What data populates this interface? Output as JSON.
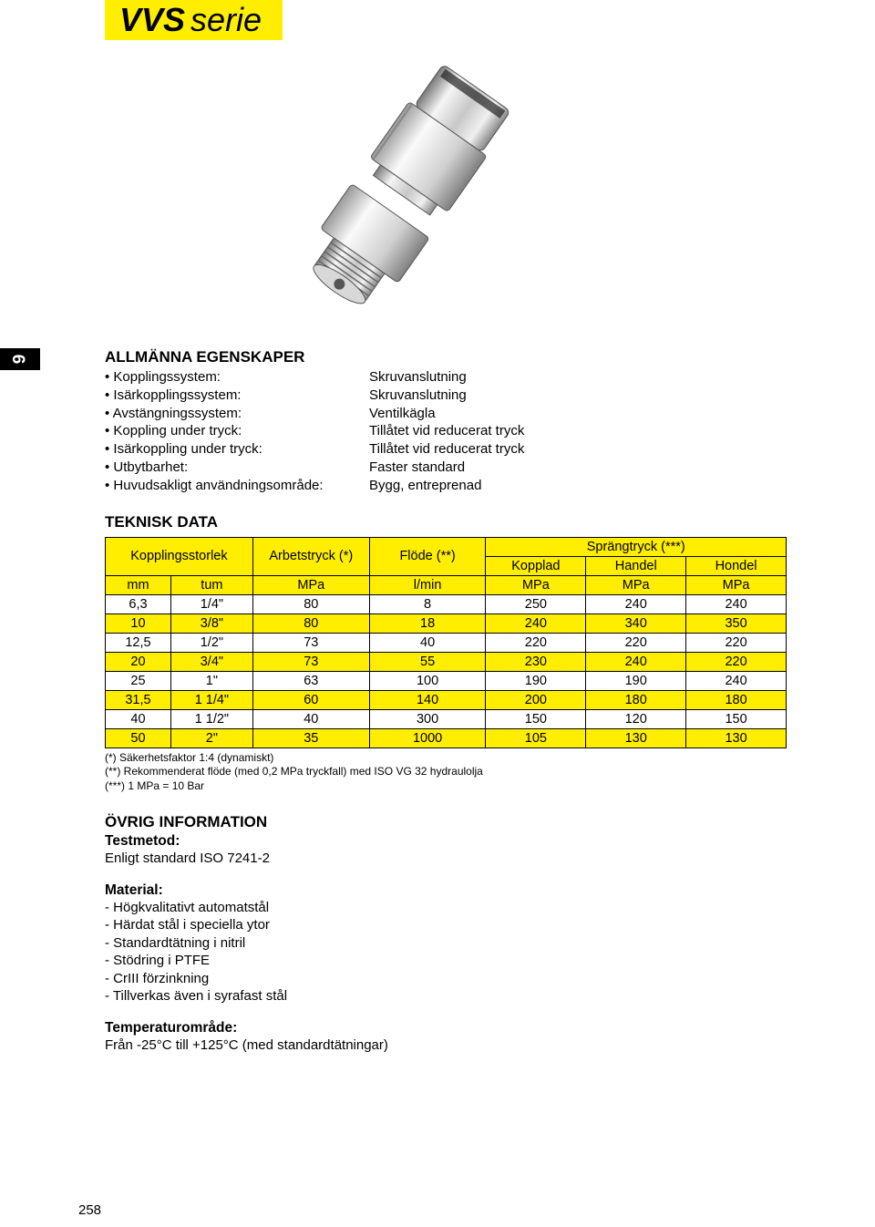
{
  "title": {
    "bold": "VVS",
    "light": "serie"
  },
  "side_tab": "9",
  "page_number": "258",
  "sections": {
    "general": {
      "heading": "ALLMÄNNA EGENSKAPER",
      "rows": [
        {
          "key": "Kopplingssystem:",
          "val": "Skruvanslutning"
        },
        {
          "key": "Isärkopplingssystem:",
          "val": "Skruvanslutning"
        },
        {
          "key": "Avstängningssystem:",
          "val": "Ventilkägla"
        },
        {
          "key": "Koppling under tryck:",
          "val": "Tillåtet vid reducerat tryck"
        },
        {
          "key": "Isärkoppling under tryck:",
          "val": "Tillåtet vid reducerat tryck"
        },
        {
          "key": "Utbytbarhet:",
          "val": "Faster standard"
        },
        {
          "key": "Huvudsakligt användningsområde:",
          "val": "Bygg, entreprenad"
        }
      ]
    },
    "tech": {
      "heading": "TEKNISK DATA",
      "header1": [
        "Kopplingsstorlek",
        "Arbetstryck (*)",
        "Flöde (**)",
        "Sprängtryck (***)"
      ],
      "header2_burst": [
        "Kopplad",
        "Handel",
        "Hondel"
      ],
      "units": [
        "mm",
        "tum",
        "MPa",
        "l/min",
        "MPa",
        "MPa",
        "MPa"
      ],
      "rows": [
        {
          "hl": false,
          "c": [
            "6,3",
            "1/4\"",
            "80",
            "8",
            "250",
            "240",
            "240"
          ]
        },
        {
          "hl": true,
          "c": [
            "10",
            "3/8\"",
            "80",
            "18",
            "240",
            "340",
            "350"
          ]
        },
        {
          "hl": false,
          "c": [
            "12,5",
            "1/2\"",
            "73",
            "40",
            "220",
            "220",
            "220"
          ]
        },
        {
          "hl": true,
          "c": [
            "20",
            "3/4\"",
            "73",
            "55",
            "230",
            "240",
            "220"
          ]
        },
        {
          "hl": false,
          "c": [
            "25",
            "1\"",
            "63",
            "100",
            "190",
            "190",
            "240"
          ]
        },
        {
          "hl": true,
          "c": [
            "31,5",
            "1 1/4\"",
            "60",
            "140",
            "200",
            "180",
            "180"
          ]
        },
        {
          "hl": false,
          "c": [
            "40",
            "1 1/2\"",
            "40",
            "300",
            "150",
            "120",
            "150"
          ]
        },
        {
          "hl": true,
          "c": [
            "50",
            "2\"",
            "35",
            "1000",
            "105",
            "130",
            "130"
          ]
        }
      ],
      "footnotes": [
        "(*)  Säkerhetsfaktor 1:4 (dynamiskt)",
        "(**) Rekommenderat flöde (med 0,2 MPa tryckfall) med ISO VG 32 hydraulolja",
        "(***) 1 MPa = 10 Bar"
      ],
      "col_widths": [
        "72",
        "90",
        "128",
        "128",
        "110",
        "110",
        "110"
      ]
    },
    "other": {
      "heading": "ÖVRIG INFORMATION",
      "test_label": "Testmetod:",
      "test_text": "Enligt standard ISO 7241-2",
      "material_label": "Material:",
      "material_list": [
        "Högkvalitativt automatstål",
        "Härdat stål i speciella ytor",
        "Standardtätning i nitril",
        "Stödring i PTFE",
        "CrIII förzinkning",
        "Tillverkas även i syrafast stål"
      ],
      "temp_label": "Temperaturområde:",
      "temp_text": "Från -25°C till +125°C (med standardtätningar)"
    }
  },
  "colors": {
    "highlight": "#ffee00",
    "text": "#000000",
    "background": "#ffffff"
  }
}
